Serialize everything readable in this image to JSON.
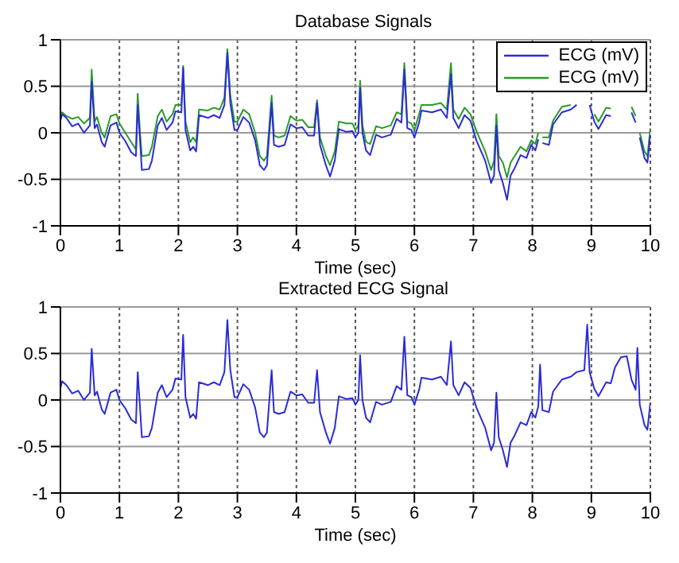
{
  "chart_data": [
    {
      "type": "line",
      "title": "Database Signals",
      "xlabel": "Time (sec)",
      "xlim": [
        0,
        10
      ],
      "xticks": [
        0,
        1,
        2,
        3,
        4,
        5,
        6,
        7,
        8,
        9,
        10
      ],
      "ylim": [
        -1,
        1
      ],
      "yticks": [
        -1,
        -0.5,
        0,
        0.5,
        1
      ],
      "grid": true,
      "legend": "top right",
      "x": [
        0,
        0.03,
        0.1,
        0.2,
        0.3,
        0.4,
        0.5,
        0.53,
        0.58,
        0.62,
        0.7,
        0.75,
        0.85,
        0.95,
        1.0,
        1.1,
        1.2,
        1.28,
        1.31,
        1.35,
        1.38,
        1.5,
        1.55,
        1.65,
        1.72,
        1.8,
        1.9,
        1.95,
        2.05,
        2.08,
        2.12,
        2.2,
        2.25,
        2.3,
        2.35,
        2.5,
        2.6,
        2.7,
        2.78,
        2.83,
        2.88,
        2.95,
        3.0,
        3.1,
        3.2,
        3.3,
        3.38,
        3.45,
        3.5,
        3.58,
        3.62,
        3.7,
        3.8,
        3.9,
        4.0,
        4.1,
        4.2,
        4.3,
        4.35,
        4.4,
        4.5,
        4.57,
        4.65,
        4.72,
        4.85,
        4.95,
        5.0,
        5.05,
        5.08,
        5.12,
        5.18,
        5.25,
        5.35,
        5.45,
        5.6,
        5.7,
        5.78,
        5.83,
        5.88,
        5.95,
        6.0,
        6.08,
        6.12,
        6.3,
        6.45,
        6.55,
        6.62,
        6.66,
        6.75,
        6.85,
        6.95,
        7.05,
        7.2,
        7.3,
        7.35,
        7.39,
        7.43,
        7.5,
        7.57,
        7.63,
        7.7,
        7.8,
        7.9,
        7.98,
        8.05,
        8.1,
        8.13,
        8.17,
        8.28,
        8.35,
        8.5,
        8.65,
        8.75,
        8.88,
        8.93,
        8.97,
        9.05,
        9.12,
        9.25,
        9.33,
        9.4,
        9.5,
        9.6,
        9.68,
        9.75,
        9.78,
        9.82,
        9.9,
        9.95,
        10
      ],
      "series": [
        {
          "name": "ECG (mV)",
          "color": "#2b2bd9",
          "values": [
            0.13,
            0.2,
            0.16,
            0.07,
            0.1,
            0,
            0.08,
            0.55,
            0.05,
            0.09,
            -0.1,
            -0.15,
            0.08,
            0.11,
            0,
            -0.09,
            -0.21,
            -0.25,
            0.3,
            -0.09,
            -0.4,
            -0.39,
            -0.3,
            0.08,
            0.16,
            0.03,
            0.11,
            0.23,
            0.22,
            0.7,
            0.03,
            -0.19,
            -0.15,
            -0.2,
            0.19,
            0.16,
            0.19,
            0.16,
            0.3,
            0.86,
            0.32,
            0.03,
            0.03,
            0.17,
            0.11,
            -0.08,
            -0.35,
            -0.4,
            -0.35,
            0.32,
            -0.13,
            -0.15,
            -0.13,
            0.09,
            0.05,
            0.06,
            -0.03,
            -0.03,
            0.32,
            -0.13,
            -0.35,
            -0.47,
            -0.3,
            0.04,
            0.01,
            0.02,
            -0.05,
            0,
            0.48,
            0,
            -0.19,
            -0.24,
            -0.02,
            -0.05,
            -0.02,
            0.15,
            0.11,
            0.68,
            0.05,
            0.03,
            -0.05,
            0.11,
            0.24,
            0.22,
            0.25,
            0.16,
            0.63,
            0.16,
            0.05,
            0.19,
            0.13,
            -0.08,
            -0.3,
            -0.54,
            -0.46,
            0.08,
            -0.4,
            -0.54,
            -0.72,
            -0.46,
            -0.38,
            -0.24,
            -0.27,
            -0.13,
            -0.19,
            -0.07,
            null,
            -0.11,
            -0.13,
            0.09,
            0.22,
            0.25,
            0.3,
            null,
            null,
            0.3,
            0.12,
            0.04,
            0.19,
            0.18,
            null,
            null,
            null,
            0.22,
            0.11,
            null,
            -0.05,
            -0.27,
            -0.32,
            -0.03
          ]
        },
        {
          "name": "ECG (mV)",
          "color": "#2a9a2a",
          "values": [
            0.2,
            0.22,
            0.18,
            0.15,
            0.17,
            0.1,
            0.16,
            0.68,
            0.12,
            0.17,
            0,
            -0.05,
            0.18,
            0.2,
            0.1,
            0,
            -0.1,
            -0.18,
            0.42,
            0,
            -0.25,
            -0.24,
            -0.15,
            0.18,
            0.25,
            0.12,
            0.2,
            0.3,
            0.3,
            0.72,
            0.12,
            -0.1,
            -0.05,
            -0.1,
            0.25,
            0.24,
            0.27,
            0.25,
            0.38,
            0.9,
            0.4,
            0.12,
            0.12,
            0.25,
            0.2,
            0,
            -0.25,
            -0.3,
            -0.25,
            0.4,
            -0.03,
            -0.05,
            -0.03,
            0.18,
            0.13,
            0.14,
            0.06,
            0.06,
            0.35,
            -0.05,
            -0.25,
            -0.35,
            -0.2,
            0.12,
            0.1,
            0.1,
            0.03,
            0.08,
            0.56,
            0.08,
            -0.1,
            -0.12,
            0.07,
            0.05,
            0.08,
            0.22,
            0.2,
            0.75,
            0.12,
            0.1,
            0.03,
            0.2,
            0.3,
            0.3,
            0.32,
            0.25,
            0.75,
            0.25,
            0.15,
            0.27,
            0.2,
            0.02,
            -0.2,
            -0.4,
            -0.3,
            0.2,
            -0.25,
            -0.32,
            -0.48,
            -0.32,
            -0.25,
            -0.15,
            -0.2,
            -0.08,
            -0.12,
            0,
            null,
            -0.05,
            -0.05,
            0.13,
            0.28,
            0.3,
            null,
            null,
            null,
            null,
            0.2,
            0.12,
            0.27,
            0.26,
            null,
            null,
            null,
            0.28,
            0.18,
            null,
            0,
            -0.2,
            -0.25,
            0.05
          ]
        }
      ]
    },
    {
      "type": "line",
      "title": "Extracted ECG Signal",
      "xlabel": "Time (sec)",
      "xlim": [
        0,
        10
      ],
      "xticks": [
        0,
        1,
        2,
        3,
        4,
        5,
        6,
        7,
        8,
        9,
        10
      ],
      "ylim": [
        -1,
        1
      ],
      "yticks": [
        -1,
        -0.5,
        0,
        0.5,
        1
      ],
      "grid": true,
      "x": [
        0,
        0.03,
        0.1,
        0.2,
        0.3,
        0.4,
        0.5,
        0.53,
        0.58,
        0.62,
        0.7,
        0.75,
        0.85,
        0.95,
        1.0,
        1.1,
        1.2,
        1.28,
        1.31,
        1.35,
        1.38,
        1.5,
        1.55,
        1.65,
        1.72,
        1.8,
        1.9,
        1.95,
        2.05,
        2.08,
        2.12,
        2.2,
        2.25,
        2.3,
        2.35,
        2.5,
        2.6,
        2.7,
        2.78,
        2.83,
        2.88,
        2.95,
        3.0,
        3.1,
        3.2,
        3.3,
        3.38,
        3.45,
        3.5,
        3.58,
        3.62,
        3.7,
        3.8,
        3.9,
        4.0,
        4.1,
        4.2,
        4.3,
        4.35,
        4.4,
        4.5,
        4.57,
        4.65,
        4.72,
        4.85,
        4.95,
        5.0,
        5.05,
        5.08,
        5.12,
        5.18,
        5.25,
        5.35,
        5.45,
        5.6,
        5.7,
        5.78,
        5.83,
        5.88,
        5.95,
        6.0,
        6.08,
        6.12,
        6.3,
        6.45,
        6.55,
        6.62,
        6.66,
        6.75,
        6.85,
        6.95,
        7.05,
        7.2,
        7.3,
        7.35,
        7.39,
        7.43,
        7.5,
        7.57,
        7.63,
        7.7,
        7.8,
        7.9,
        7.98,
        8.05,
        8.1,
        8.13,
        8.17,
        8.28,
        8.35,
        8.5,
        8.65,
        8.75,
        8.88,
        8.93,
        8.97,
        9.05,
        9.12,
        9.25,
        9.33,
        9.4,
        9.5,
        9.6,
        9.68,
        9.75,
        9.78,
        9.82,
        9.9,
        9.95,
        10
      ],
      "series": [
        {
          "color": "#2b2bd9",
          "values": [
            0.13,
            0.2,
            0.16,
            0.07,
            0.1,
            0,
            0.08,
            0.55,
            0.05,
            0.09,
            -0.1,
            -0.15,
            0.08,
            0.11,
            0,
            -0.09,
            -0.21,
            -0.25,
            0.3,
            -0.09,
            -0.4,
            -0.39,
            -0.3,
            0.08,
            0.16,
            0.03,
            0.11,
            0.23,
            0.22,
            0.7,
            0.03,
            -0.19,
            -0.15,
            -0.2,
            0.19,
            0.16,
            0.19,
            0.16,
            0.3,
            0.86,
            0.32,
            0.03,
            0.03,
            0.17,
            0.11,
            -0.08,
            -0.35,
            -0.4,
            -0.35,
            0.32,
            -0.13,
            -0.15,
            -0.13,
            0.09,
            0.05,
            0.06,
            -0.03,
            -0.03,
            0.32,
            -0.13,
            -0.35,
            -0.47,
            -0.3,
            0.04,
            0.01,
            0.02,
            -0.05,
            0,
            0.48,
            0,
            -0.19,
            -0.24,
            -0.02,
            -0.05,
            -0.02,
            0.15,
            0.11,
            0.68,
            0.05,
            0.03,
            -0.05,
            0.11,
            0.24,
            0.22,
            0.25,
            0.16,
            0.63,
            0.16,
            0.05,
            0.19,
            0.13,
            -0.08,
            -0.3,
            -0.54,
            -0.46,
            0.08,
            -0.4,
            -0.54,
            -0.72,
            -0.46,
            -0.38,
            -0.24,
            -0.27,
            -0.13,
            -0.19,
            -0.07,
            0.38,
            -0.11,
            -0.13,
            0.09,
            0.22,
            0.25,
            0.3,
            0.32,
            0.81,
            0.3,
            0.12,
            0.04,
            0.19,
            0.18,
            0.35,
            0.46,
            0.47,
            0.22,
            0.11,
            0.56,
            -0.05,
            -0.27,
            -0.32,
            -0.03
          ]
        }
      ]
    }
  ]
}
